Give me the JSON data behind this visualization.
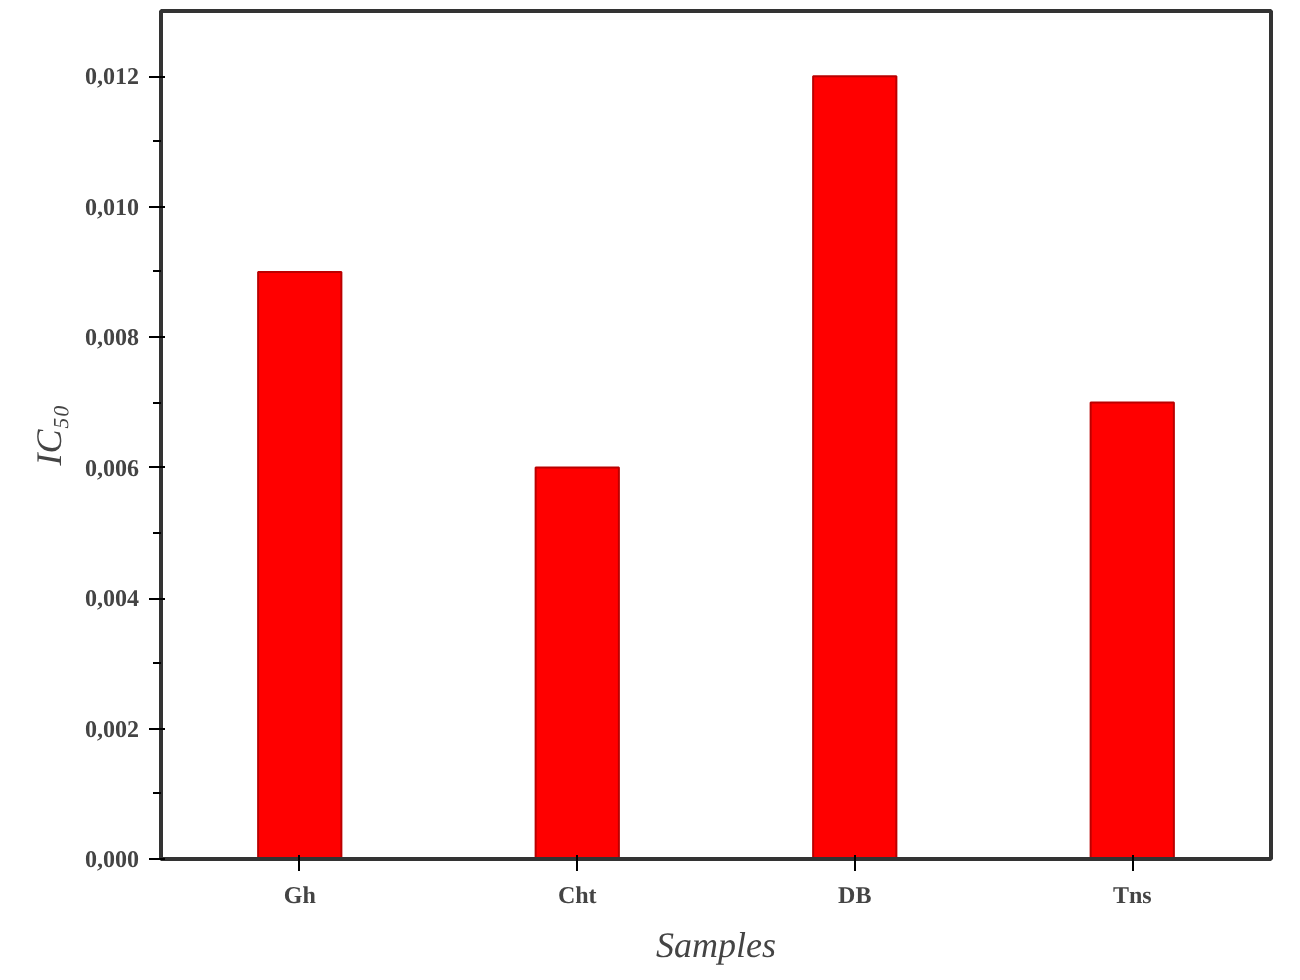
{
  "chart_data": {
    "type": "bar",
    "xlabel": "Samples",
    "ylabel": "IC₅₀",
    "categories": [
      "Gh",
      "Cht",
      "DB",
      "Tns"
    ],
    "values": [
      0.009,
      0.006,
      0.012,
      0.007
    ],
    "color": "#ff0000",
    "ylim": [
      0,
      0.013
    ],
    "yticks": [
      {
        "value": 0,
        "label": "0,000"
      },
      {
        "value": 0.002,
        "label": "0,002"
      },
      {
        "value": 0.004,
        "label": "0,004"
      },
      {
        "value": 0.006,
        "label": "0,006"
      },
      {
        "value": 0.008,
        "label": "0,008"
      },
      {
        "value": 0.01,
        "label": "0,010"
      },
      {
        "value": 0.012,
        "label": "0,012"
      }
    ],
    "grid": false
  }
}
